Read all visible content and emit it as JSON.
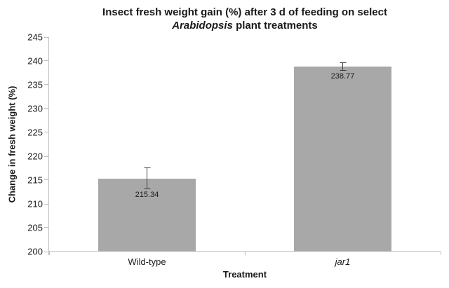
{
  "chart_data": {
    "type": "bar",
    "title_line1": "Insect fresh weight gain (%) after 3 d of feeding on select",
    "title_line2_italic": "Arabidopsis",
    "title_line2_rest": " plant treatments",
    "xlabel": "Treatment",
    "ylabel": "Change in fresh weight (%)",
    "categories": [
      "Wild-type",
      "jar1"
    ],
    "categories_italic": [
      false,
      true
    ],
    "values": [
      215.34,
      238.77
    ],
    "value_labels": [
      "215.34",
      "238.77"
    ],
    "errors": [
      2.3,
      0.9
    ],
    "ylim": [
      200,
      245
    ],
    "yticks": [
      200,
      205,
      210,
      215,
      220,
      225,
      230,
      235,
      240,
      245
    ],
    "grid": false,
    "legend": "none",
    "style": {
      "bar_fill": "#a8a8a8",
      "axis_line": "#c0c0c0",
      "error_color": "#404040",
      "text_color": "#1a1a1a",
      "background": "#ffffff"
    }
  }
}
